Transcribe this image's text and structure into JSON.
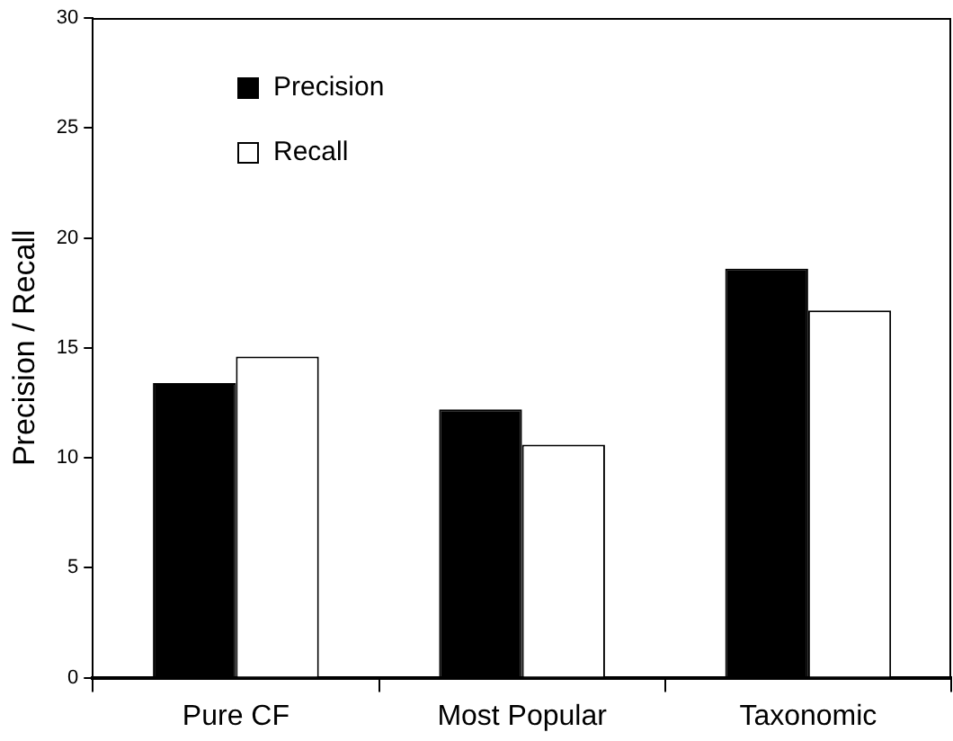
{
  "chart_data": {
    "type": "bar",
    "ylabel": "Precision / Recall",
    "categories": [
      "Pure CF",
      "Most Popular",
      "Taxonomic"
    ],
    "series": [
      {
        "name": "Precision",
        "color": "#000000",
        "values": [
          13.4,
          12.2,
          18.6
        ]
      },
      {
        "name": "Recall",
        "color": "#ffffff",
        "values": [
          14.6,
          10.6,
          16.7
        ]
      }
    ],
    "ylim": [
      0,
      30
    ],
    "yticks": [
      0,
      5,
      10,
      15,
      20,
      25,
      30
    ],
    "grid": false,
    "legend": "top left"
  }
}
